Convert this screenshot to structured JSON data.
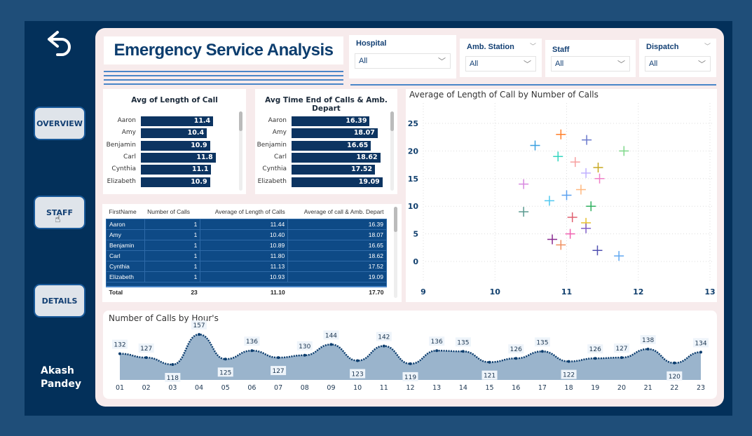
{
  "nav": {
    "back_icon": "undo-arrow-icon",
    "buttons": [
      "OVERVIEW",
      "STAFF",
      "DETAILS"
    ],
    "author": [
      "Akash",
      "Pandey"
    ]
  },
  "header": {
    "title": "Emergency Service Analysis"
  },
  "slicers": [
    {
      "label": "Hospital",
      "value": "All"
    },
    {
      "label": "Amb. Station",
      "value": "All"
    },
    {
      "label": "Staff",
      "value": "All"
    },
    {
      "label": "Dispatch",
      "value": "All"
    }
  ],
  "colors": {
    "bar": "#0c3461",
    "frame": "#03305a",
    "canvas": "#f7ebec",
    "area": "#9ab4cc",
    "line": "#0c3d6e"
  },
  "chart_data": [
    {
      "type": "bar",
      "orientation": "horizontal",
      "title": "Avg of Length of Call",
      "categories": [
        "Aaron",
        "Amy",
        "Benjamin",
        "Carl",
        "Cynthia",
        "Elizabeth"
      ],
      "values": [
        11.4,
        10.4,
        10.9,
        11.8,
        11.1,
        10.9
      ]
    },
    {
      "type": "bar",
      "orientation": "horizontal",
      "title": "Avg Time End of Calls & Amb. Depart",
      "categories": [
        "Aaron",
        "Amy",
        "Benjamin",
        "Carl",
        "Cynthia",
        "Elizabeth"
      ],
      "values": [
        16.39,
        18.07,
        16.65,
        18.62,
        17.52,
        19.09
      ]
    },
    {
      "type": "table",
      "columns": [
        "FirstName",
        "Number of Calls",
        "Average of Length of Calls",
        "Average of call & Amb. Depart"
      ],
      "rows": [
        [
          "Aaron",
          "1",
          "11.44",
          "16.39"
        ],
        [
          "Amy",
          "1",
          "10.40",
          "18.07"
        ],
        [
          "Benjamin",
          "1",
          "10.89",
          "16.65"
        ],
        [
          "Carl",
          "1",
          "11.80",
          "18.62"
        ],
        [
          "Cynthia",
          "1",
          "11.13",
          "17.52"
        ],
        [
          "Elizabeth",
          "1",
          "10.93",
          "19.09"
        ]
      ],
      "total": [
        "Total",
        "23",
        "11.10",
        "17.70"
      ]
    },
    {
      "type": "scatter",
      "title": "Average of Length of Call by Number of Calls",
      "xlim": [
        9,
        13
      ],
      "ylim": [
        -4,
        28
      ],
      "xticks": [
        9,
        10,
        11,
        12,
        13
      ],
      "yticks": [
        0,
        5,
        10,
        15,
        20,
        25
      ],
      "grid": true,
      "marker": "cross",
      "points": [
        [
          10.92,
          23
        ],
        [
          11.28,
          22
        ],
        [
          10.56,
          21
        ],
        [
          11.8,
          20
        ],
        [
          10.88,
          19
        ],
        [
          11.12,
          18
        ],
        [
          11.44,
          17
        ],
        [
          11.27,
          16
        ],
        [
          11.46,
          15
        ],
        [
          10.4,
          14
        ],
        [
          11.2,
          13
        ],
        [
          11.0,
          12
        ],
        [
          10.76,
          11
        ],
        [
          11.34,
          10
        ],
        [
          10.4,
          9
        ],
        [
          11.08,
          8
        ],
        [
          11.27,
          7
        ],
        [
          11.27,
          6
        ],
        [
          11.05,
          5
        ],
        [
          10.8,
          4
        ],
        [
          10.92,
          3
        ],
        [
          11.43,
          2
        ],
        [
          11.73,
          1
        ]
      ],
      "point_colors": [
        "#ff7f2a",
        "#6a78cc",
        "#3aa0e0",
        "#7fd88a",
        "#33d6c0",
        "#f7a0a0",
        "#c8a820",
        "#c0b0ff",
        "#f080c8",
        "#d888e0",
        "#ffb880",
        "#5aa0f0",
        "#50c8f0",
        "#30b060",
        "#5a9a90",
        "#e06070",
        "#e8c030",
        "#8060c8",
        "#f060b0",
        "#882a90",
        "#f09060",
        "#5050b0",
        "#60a8f0"
      ]
    },
    {
      "type": "area",
      "title": "Number of Calls by Hour's",
      "categories": [
        "01",
        "02",
        "03",
        "04",
        "05",
        "06",
        "07",
        "08",
        "09",
        "10",
        "11",
        "12",
        "13",
        "14",
        "15",
        "16",
        "17",
        "18",
        "19",
        "20",
        "21",
        "22",
        "23"
      ],
      "values": [
        132,
        127,
        118,
        157,
        125,
        136,
        127,
        130,
        144,
        123,
        142,
        119,
        136,
        135,
        121,
        126,
        135,
        122,
        126,
        127,
        138,
        120,
        134
      ],
      "data_labels": true
    }
  ]
}
